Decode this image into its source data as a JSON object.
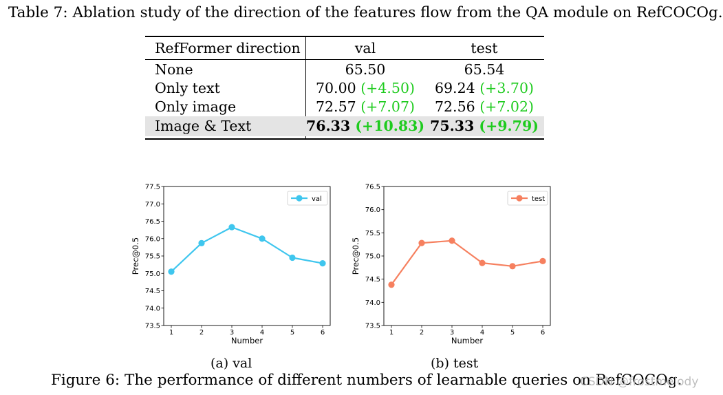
{
  "table": {
    "caption": "Table 7: Ablation study of the direction of the features flow from the QA module on RefCOCOg.",
    "headers": [
      "RefFormer direction",
      "val",
      "test"
    ],
    "rows": [
      {
        "name": "None",
        "val": "65.50",
        "val_delta": "",
        "test": "65.54",
        "test_delta": ""
      },
      {
        "name": "Only text",
        "val": "70.00",
        "val_delta": "(+4.50)",
        "test": "69.24",
        "test_delta": "(+3.70)"
      },
      {
        "name": "Only image",
        "val": "72.57",
        "val_delta": "(+7.07)",
        "test": "72.56",
        "test_delta": "(+7.02)"
      },
      {
        "name": "Image & Text",
        "val": "76.33",
        "val_delta": "(+10.83)",
        "test": "75.33",
        "test_delta": "(+9.79)"
      }
    ],
    "delta_color": "#1ecb1e",
    "highlight_color": "#e4e4e4"
  },
  "chart_data": [
    {
      "type": "line",
      "title": "",
      "xlabel": "Number",
      "ylabel": "Prec@0.5",
      "x": [
        1,
        2,
        3,
        4,
        5,
        6
      ],
      "xticks": [
        "1",
        "2",
        "3",
        "4",
        "5",
        "6"
      ],
      "yticks": [
        "73.5",
        "74.0",
        "74.5",
        "75.0",
        "75.5",
        "76.0",
        "76.5",
        "77.0",
        "77.5"
      ],
      "ylim": [
        73.5,
        77.5
      ],
      "series": [
        {
          "name": "val",
          "color": "#3fc6ee",
          "values": [
            75.05,
            75.87,
            76.33,
            76.0,
            75.45,
            75.29
          ]
        }
      ],
      "legend": "top-right",
      "subcaption": "(a) val"
    },
    {
      "type": "line",
      "title": "",
      "xlabel": "Number",
      "ylabel": "Prec@0.5",
      "x": [
        1,
        2,
        3,
        4,
        5,
        6
      ],
      "xticks": [
        "1",
        "2",
        "3",
        "4",
        "5",
        "6"
      ],
      "yticks": [
        "73.5",
        "74.0",
        "74.5",
        "75.0",
        "75.5",
        "76.0",
        "76.5"
      ],
      "ylim": [
        73.5,
        76.5
      ],
      "series": [
        {
          "name": "test",
          "color": "#f6805f",
          "values": [
            74.38,
            75.28,
            75.33,
            74.85,
            74.78,
            74.89
          ]
        }
      ],
      "legend": "top-right",
      "subcaption": "(b) test"
    }
  ],
  "figure_caption": "Figure 6: The performance of different numbers of learnable queries on RefCOCOg.",
  "watermark": "CSDN @frostmelody"
}
